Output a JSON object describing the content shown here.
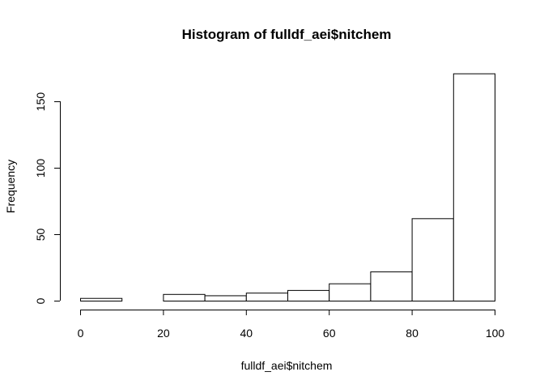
{
  "chart_data": {
    "type": "bar",
    "title": "Histogram of fulldf_aei$nitchem",
    "xlabel": "fulldf_aei$nitchem",
    "ylabel": "Frequency",
    "bin_edges": [
      0,
      10,
      20,
      30,
      40,
      50,
      60,
      70,
      80,
      90,
      100
    ],
    "values": [
      2,
      0,
      5,
      4,
      6,
      8,
      13,
      22,
      62,
      171
    ],
    "xlim": [
      0,
      100
    ],
    "ylim": [
      0,
      175
    ],
    "x_ticks": [
      0,
      20,
      40,
      60,
      80,
      100
    ],
    "y_ticks": [
      0,
      50,
      100,
      150
    ],
    "grid": false,
    "legend": "none",
    "bar_fill": "#ffffff",
    "bar_stroke": "#000000"
  }
}
